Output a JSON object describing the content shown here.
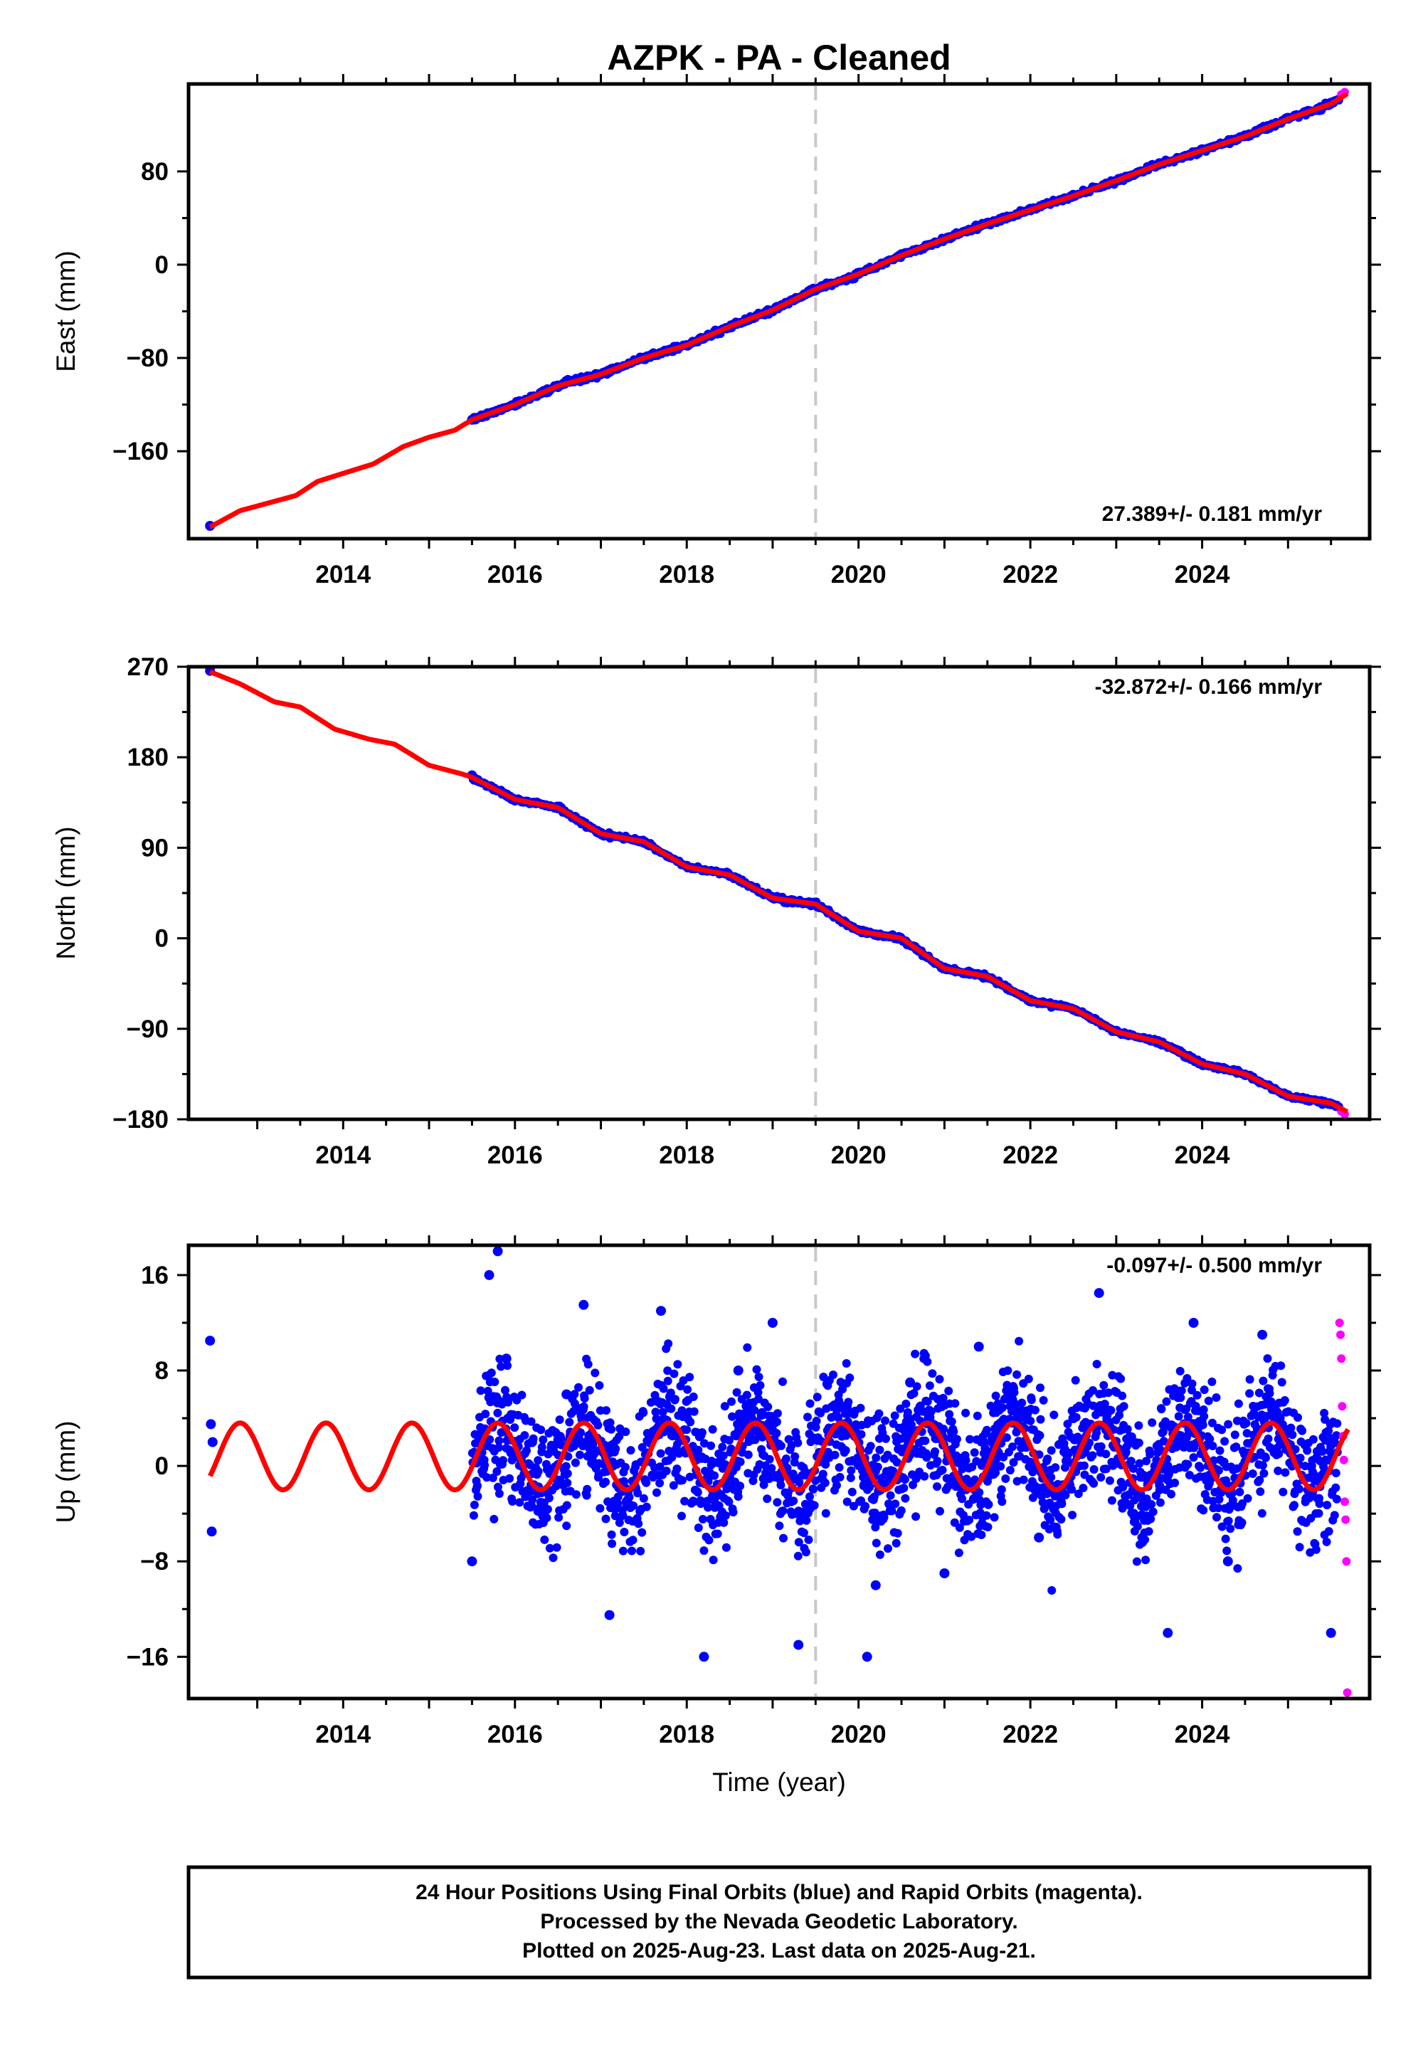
{
  "title": "AZPK  - PA - Cleaned",
  "colors": {
    "final_orbits": "#0000ff",
    "rapid_orbits": "#ff00ff",
    "model_fit": "#ff0000",
    "event_line": "#c8c8c8"
  },
  "x_ticks": [
    "2014",
    "2016",
    "2018",
    "2020",
    "2022",
    "2024"
  ],
  "xlabel": "Time (year)",
  "footer": [
    "24 Hour Positions Using Final Orbits (blue) and Rapid Orbits (magenta).",
    "Processed by the Nevada Geodetic Laboratory.",
    "Plotted on 2025-Aug-23. Last data on 2025-Aug-21."
  ],
  "chart_data": [
    {
      "type": "scatter",
      "name": "east",
      "ylabel": "East (mm)",
      "rate": "27.389+/- 0.181 mm/yr",
      "rate_position": "bottom-right",
      "xlim": [
        2012.2,
        2025.95
      ],
      "ylim": [
        -235,
        155
      ],
      "y_ticks": [
        "80",
        "0",
        "-80",
        "-160"
      ],
      "y_tick_values": [
        80,
        0,
        -80,
        -160
      ],
      "event_line_x": 2019.5,
      "model_fit": {
        "x": [
          2012.45,
          2012.8,
          2013.2,
          2013.45,
          2013.7,
          2014.0,
          2014.35,
          2014.7,
          2015.0,
          2015.3,
          2015.5,
          2016.0,
          2016.5,
          2017.0,
          2017.5,
          2018.0,
          2018.5,
          2019.0,
          2019.5,
          2020.0,
          2020.5,
          2021.0,
          2021.5,
          2022.0,
          2022.5,
          2023.0,
          2023.5,
          2024.0,
          2024.5,
          2025.0,
          2025.5,
          2025.7
        ],
        "y": [
          -225,
          -211,
          -203,
          -198,
          -186,
          -179,
          -171,
          -156,
          -148,
          -142,
          -133,
          -120,
          -104,
          -94,
          -80,
          -69,
          -53,
          -39,
          -21,
          -8,
          8,
          22,
          35,
          47,
          59,
          72,
          86,
          98,
          110,
          125,
          138,
          147
        ]
      },
      "final_orbit_samples": {
        "x": [
          2012.45,
          2015.5,
          2016.0,
          2016.5,
          2017.0,
          2017.5,
          2018.0,
          2018.5,
          2019.0,
          2019.5,
          2020.0,
          2020.5,
          2021.0,
          2021.5,
          2022.0,
          2022.5,
          2023.0,
          2023.5,
          2024.0,
          2024.5,
          2025.0,
          2025.5
        ],
        "y": [
          -224,
          -133,
          -121,
          -105,
          -94,
          -81,
          -69,
          -54,
          -40,
          -22,
          -8,
          9,
          22,
          36,
          48,
          60,
          72,
          87,
          99,
          111,
          126,
          139
        ]
      },
      "rapid_orbit_samples": {
        "x": [
          2025.62,
          2025.66
        ],
        "y": [
          146,
          148
        ]
      }
    },
    {
      "type": "scatter",
      "name": "north",
      "ylabel": "North (mm)",
      "rate": "-32.872+/- 0.166 mm/yr",
      "rate_position": "top-right",
      "xlim": [
        2012.2,
        2025.95
      ],
      "ylim": [
        -180,
        270
      ],
      "y_ticks": [
        "270",
        "180",
        "90",
        "0",
        "-90",
        "-180"
      ],
      "y_tick_values": [
        270,
        180,
        90,
        0,
        -90,
        -180
      ],
      "event_line_x": 2019.5,
      "model_fit": {
        "x": [
          2012.45,
          2012.8,
          2013.2,
          2013.5,
          2013.9,
          2014.3,
          2014.6,
          2015.0,
          2015.4,
          2015.5,
          2016.0,
          2016.5,
          2017.0,
          2017.5,
          2018.0,
          2018.5,
          2019.0,
          2019.5,
          2020.0,
          2020.5,
          2021.0,
          2021.5,
          2022.0,
          2022.5,
          2023.0,
          2023.5,
          2024.0,
          2024.5,
          2025.0,
          2025.5,
          2025.7
        ],
        "y": [
          265,
          253,
          235,
          230,
          208,
          198,
          193,
          172,
          163,
          160,
          138,
          130,
          104,
          96,
          71,
          63,
          40,
          34,
          7,
          0,
          -30,
          -38,
          -62,
          -70,
          -93,
          -103,
          -125,
          -135,
          -157,
          -164,
          -173
        ]
      },
      "final_orbit_samples": {
        "x": [
          2012.45,
          2015.5,
          2016.0,
          2016.5,
          2017.0,
          2017.5,
          2018.0,
          2018.5,
          2019.0,
          2019.5,
          2020.0,
          2020.5,
          2021.0,
          2021.5,
          2022.0,
          2022.5,
          2023.0,
          2023.5,
          2024.0,
          2024.5,
          2025.0,
          2025.5
        ],
        "y": [
          266,
          162,
          137,
          131,
          105,
          95,
          72,
          62,
          41,
          33,
          8,
          -1,
          -29,
          -39,
          -61,
          -71,
          -92,
          -104,
          -124,
          -136,
          -156,
          -165
        ]
      },
      "rapid_orbit_samples": {
        "x": [
          2025.62,
          2025.66
        ],
        "y": [
          -172,
          -175
        ]
      }
    },
    {
      "type": "scatter",
      "name": "up",
      "ylabel": "Up (mm)",
      "rate": "-0.097+/- 0.500 mm/yr",
      "rate_position": "top-right",
      "xlim": [
        2012.2,
        2025.95
      ],
      "ylim": [
        -19.5,
        18.5
      ],
      "y_ticks": [
        "16",
        "8",
        "0",
        "-8",
        "-16"
      ],
      "y_tick_values": [
        16,
        8,
        0,
        -8,
        -16
      ],
      "event_line_x": 2019.5,
      "model_fit_seasonal": {
        "amplitude": 2.8,
        "period_years": 1.0,
        "peak_year_fraction": 0.8,
        "offset": 0.8
      },
      "final_orbit_samples": {
        "x": [
          2012.45,
          2012.46,
          2012.47,
          2012.48,
          2015.5,
          2015.7,
          2015.8,
          2015.9,
          2016.2,
          2016.6,
          2016.8,
          2017.1,
          2017.3,
          2017.7,
          2018.2,
          2018.6,
          2019.0,
          2019.3,
          2019.8,
          2020.1,
          2020.2,
          2020.6,
          2021.0,
          2021.4,
          2021.8,
          2022.1,
          2022.5,
          2022.8,
          2023.2,
          2023.6,
          2023.9,
          2024.3,
          2024.7,
          2025.0,
          2025.5
        ],
        "y": [
          10.5,
          3.5,
          -5.5,
          2.0,
          -8.0,
          16.0,
          18.0,
          9.0,
          2.0,
          6.0,
          13.5,
          -12.5,
          -3.0,
          13.0,
          -16.0,
          8.0,
          12.0,
          -15.0,
          5.0,
          -16.0,
          -10.0,
          7.0,
          -9.0,
          10.0,
          5.0,
          -6.0,
          4.0,
          14.5,
          -4.0,
          -14.0,
          12.0,
          -8.0,
          11.0,
          3.0,
          -14.0
        ]
      },
      "rapid_orbit_samples": {
        "x": [
          2025.6,
          2025.61,
          2025.62,
          2025.63,
          2025.64,
          2025.65,
          2025.66,
          2025.67,
          2025.68,
          2025.69
        ],
        "y": [
          12.0,
          11.0,
          9.0,
          5.0,
          2.5,
          0.5,
          -3.0,
          -4.5,
          -8.0,
          -19.0
        ]
      }
    }
  ]
}
